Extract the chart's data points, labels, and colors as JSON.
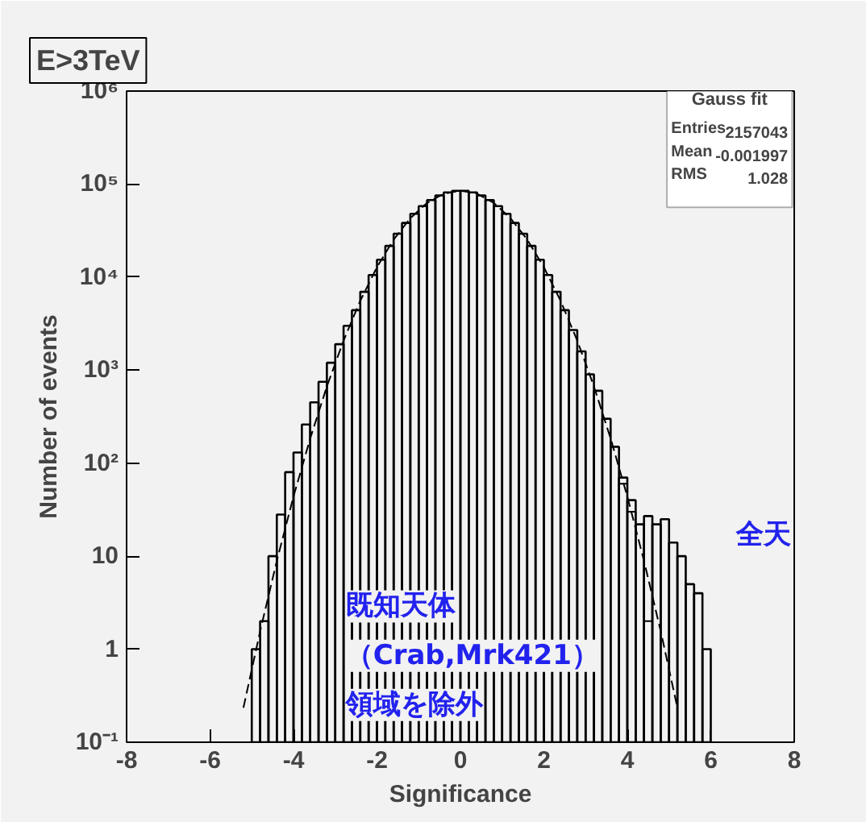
{
  "chart_data": {
    "type": "histogram",
    "title": "E>3TeV",
    "xlabel": "Significance",
    "ylabel": "Number of events",
    "bins": [
      -5.0,
      -4.8,
      -4.6,
      -4.4,
      -4.2,
      -4.0,
      -3.8,
      -3.6,
      -3.4,
      -3.2,
      -3.0,
      -2.8,
      -2.6,
      -2.4,
      -2.2,
      -2.0,
      -1.8,
      -1.6,
      -1.4,
      -1.2,
      -1.0,
      -0.8,
      -0.6,
      -0.4,
      -0.2,
      0,
      0.2,
      0.4,
      0.6,
      0.8,
      1.0,
      1.2,
      1.4,
      1.6,
      1.8,
      2.0,
      2.2,
      2.4,
      2.6,
      2.8,
      3.0,
      3.2,
      3.4,
      3.6,
      3.8,
      4.0,
      4.2,
      4.4,
      4.6,
      4.8,
      5.0,
      5.2,
      5.4,
      5.6,
      5.8,
      6.0
    ],
    "series": [
      {
        "name": "全天",
        "color": "#000000",
        "values": [
          1,
          2,
          10,
          28,
          80,
          130,
          260,
          450,
          750,
          1200,
          1900,
          3000,
          4410,
          6950,
          10540,
          15400,
          21650,
          29300,
          38200,
          47950,
          57900,
          67400,
          75500,
          81450,
          84600,
          84600,
          81450,
          75500,
          67400,
          57900,
          47950,
          38200,
          29300,
          21650,
          15400,
          10540,
          6950,
          4410,
          2700,
          1590,
          901,
          600,
          300,
          150,
          70,
          40,
          22,
          27,
          22,
          25,
          14,
          10,
          5,
          4,
          1
        ]
      },
      {
        "color": "#000000",
        "values": [
          null,
          null,
          null,
          null,
          null,
          null,
          null,
          null,
          null,
          null,
          null,
          null,
          null,
          null,
          null,
          null,
          null,
          null,
          null,
          null,
          null,
          null,
          null,
          null,
          null,
          null,
          null,
          null,
          null,
          null,
          null,
          null,
          null,
          null,
          null,
          null,
          null,
          null,
          null,
          null,
          null,
          null,
          null,
          null,
          60,
          30,
          null,
          2,
          null,
          null,
          null,
          null,
          null,
          null,
          null
        ]
      },
      {
        "type": "line",
        "color": "#000000",
        "line_style": "dashed",
        "x": [
          -5.2,
          -4.8,
          -4.4,
          -4.0,
          -3.6,
          -3.2,
          -2.8,
          -2.4,
          -2.0,
          -1.6,
          -1.2,
          -0.8,
          -0.4,
          0,
          0.4,
          0.8,
          1.2,
          1.6,
          2.0,
          2.4,
          2.8,
          3.2,
          3.6,
          4.0,
          4.4,
          4.8,
          5.2
        ],
        "values": [
          0.235,
          1.56,
          8.9,
          43.8,
          184,
          668,
          2080,
          5570,
          12800,
          25300,
          43000,
          62800,
          78800,
          85000,
          78800,
          62800,
          43000,
          25300,
          12800,
          5570,
          2080,
          668,
          184,
          43.8,
          8.9,
          1.56,
          0.235
        ]
      }
    ],
    "xlim": [
      -8,
      8
    ],
    "xticks": [
      -8,
      -6,
      -4,
      -2,
      0,
      2,
      4,
      6,
      8
    ],
    "ylim": [
      0.1,
      1000000
    ],
    "yticks": [
      {
        "value": 0.1,
        "label": "10⁻¹"
      },
      1,
      10,
      {
        "value": 100,
        "label": "10²"
      },
      {
        "value": 1000,
        "label": "10³"
      },
      {
        "value": 10000,
        "label": "10⁴"
      },
      {
        "value": 100000,
        "label": "10⁵"
      },
      {
        "value": 1000000,
        "label": "10⁶"
      }
    ],
    "log": "y",
    "grid": false,
    "annotations": [
      "Gauss fit",
      "Entries",
      "2157043",
      "Mean",
      "-0.001997",
      "RMS",
      "1.028",
      "既知天体",
      "（Crab,Mrk421）",
      "領域を除外"
    ]
  }
}
